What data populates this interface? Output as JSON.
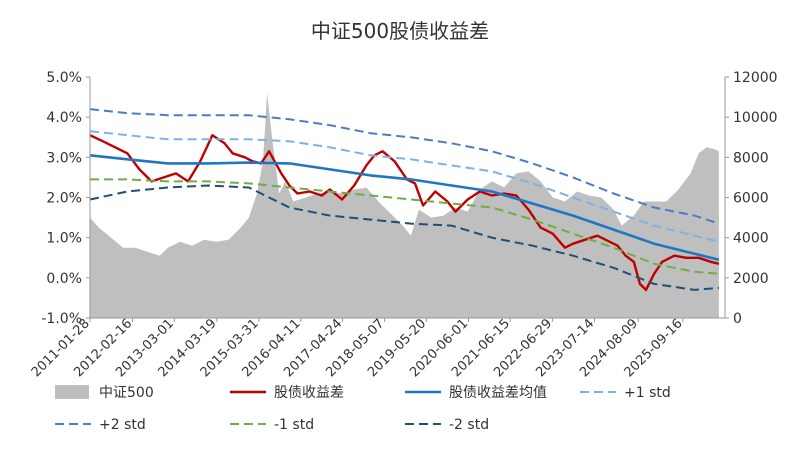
{
  "chart_data": {
    "type": "line",
    "title": "中证500股债收益差",
    "left_axis": {
      "min": -0.01,
      "max": 0.05,
      "step": 0.01,
      "tick_labels": [
        "-1.0%",
        "0.0%",
        "1.0%",
        "2.0%",
        "3.0%",
        "4.0%",
        "5.0%"
      ]
    },
    "right_axis": {
      "min": 0,
      "max": 12000,
      "step": 2000,
      "tick_labels": [
        "0",
        "2000",
        "4000",
        "6000",
        "8000",
        "10000",
        "12000"
      ]
    },
    "x_axis": {
      "range": [
        "2011-01-28",
        "2026-09-30"
      ],
      "tick_labels": [
        "2011-01-28",
        "2012-02-16",
        "2013-03-01",
        "2014-03-19",
        "2015-03-31",
        "2016-04-11",
        "2017-04-24",
        "2018-05-07",
        "2019-05-20",
        "2020-06-01",
        "2021-06-15",
        "2022-06-29",
        "2023-07-14",
        "2024-08-09",
        "2025-09-16"
      ],
      "tick_positions": [
        2011.08,
        2012.13,
        2013.16,
        2014.21,
        2015.25,
        2016.28,
        2017.31,
        2018.35,
        2019.38,
        2020.42,
        2021.45,
        2022.49,
        2023.53,
        2024.61,
        2025.71
      ]
    },
    "grid": false,
    "legend_position": "bottom",
    "series": [
      {
        "name": "中证500",
        "kind": "area",
        "axis": "right",
        "color": "#bfbfbf",
        "x": [
          2011.08,
          2011.3,
          2011.6,
          2011.9,
          2012.2,
          2012.5,
          2012.8,
          2013.0,
          2013.3,
          2013.6,
          2013.9,
          2014.2,
          2014.5,
          2014.8,
          2015.0,
          2015.2,
          2015.35,
          2015.45,
          2015.6,
          2015.75,
          2015.9,
          2016.1,
          2016.4,
          2016.7,
          2017.0,
          2017.3,
          2017.6,
          2017.9,
          2018.2,
          2018.5,
          2018.8,
          2019.0,
          2019.2,
          2019.5,
          2019.8,
          2020.1,
          2020.4,
          2020.7,
          2021.0,
          2021.3,
          2021.6,
          2021.9,
          2022.2,
          2022.5,
          2022.8,
          2023.1,
          2023.4,
          2023.7,
          2024.0,
          2024.2,
          2024.5,
          2024.75,
          2025.0,
          2025.3,
          2025.6,
          2025.9,
          2026.1,
          2026.3,
          2026.5,
          2026.6
        ],
        "y": [
          5000,
          4500,
          4000,
          3500,
          3500,
          3300,
          3100,
          3500,
          3800,
          3600,
          3900,
          3800,
          3900,
          4500,
          5000,
          6200,
          7800,
          11200,
          8500,
          6200,
          6800,
          5800,
          6000,
          6200,
          6300,
          6200,
          6400,
          6500,
          5800,
          5200,
          4600,
          4100,
          5400,
          5000,
          5100,
          5500,
          5300,
          6400,
          6800,
          6500,
          7200,
          7300,
          6800,
          6000,
          5800,
          6300,
          6100,
          6000,
          5400,
          4600,
          5100,
          5800,
          5800,
          5800,
          6400,
          7200,
          8200,
          8500,
          8400,
          8300
        ]
      },
      {
        "name": "股债收益差",
        "kind": "line",
        "axis": "left",
        "color": "#c00000",
        "x": [
          2011.08,
          2011.4,
          2011.7,
          2012.0,
          2012.3,
          2012.6,
          2012.9,
          2013.2,
          2013.5,
          2013.8,
          2014.1,
          2014.4,
          2014.6,
          2014.9,
          2015.1,
          2015.3,
          2015.5,
          2015.8,
          2016.0,
          2016.2,
          2016.5,
          2016.8,
          2017.0,
          2017.3,
          2017.6,
          2017.9,
          2018.1,
          2018.3,
          2018.6,
          2018.9,
          2019.1,
          2019.3,
          2019.6,
          2019.9,
          2020.1,
          2020.4,
          2020.7,
          2021.0,
          2021.3,
          2021.6,
          2021.9,
          2022.2,
          2022.5,
          2022.8,
          2023.0,
          2023.3,
          2023.6,
          2023.9,
          2024.1,
          2024.3,
          2024.5,
          2024.65,
          2024.8,
          2025.0,
          2025.2,
          2025.5,
          2025.8,
          2026.1,
          2026.4,
          2026.6
        ],
        "y": [
          0.0355,
          0.034,
          0.0325,
          0.031,
          0.027,
          0.024,
          0.025,
          0.026,
          0.024,
          0.029,
          0.0355,
          0.0335,
          0.031,
          0.03,
          0.029,
          0.0285,
          0.0315,
          0.026,
          0.023,
          0.021,
          0.0215,
          0.0205,
          0.022,
          0.0195,
          0.023,
          0.028,
          0.0305,
          0.0315,
          0.029,
          0.0245,
          0.0235,
          0.018,
          0.0215,
          0.019,
          0.0165,
          0.0195,
          0.0215,
          0.0205,
          0.021,
          0.0205,
          0.017,
          0.0125,
          0.011,
          0.0075,
          0.0085,
          0.0095,
          0.0105,
          0.009,
          0.008,
          0.0055,
          0.004,
          -0.0015,
          -0.003,
          0.001,
          0.004,
          0.0055,
          0.005,
          0.005,
          0.004,
          0.0035
        ]
      },
      {
        "name": "股债收益差均值",
        "kind": "line",
        "axis": "left",
        "color": "#1f77c4",
        "x": [
          2011.08,
          2012.0,
          2013.0,
          2014.0,
          2015.0,
          2016.0,
          2017.0,
          2018.0,
          2019.0,
          2020.0,
          2021.0,
          2022.0,
          2023.0,
          2024.0,
          2025.0,
          2026.0,
          2026.6
        ],
        "y": [
          0.0305,
          0.0295,
          0.0285,
          0.0285,
          0.0287,
          0.0285,
          0.027,
          0.0255,
          0.0245,
          0.023,
          0.0215,
          0.0185,
          0.0155,
          0.012,
          0.0085,
          0.006,
          0.0045
        ]
      },
      {
        "name": "+1 std",
        "kind": "line",
        "axis": "left",
        "color": "#7fb1e6",
        "dash": "9,5",
        "x": [
          2011.08,
          2012.0,
          2013.0,
          2014.0,
          2015.0,
          2016.0,
          2017.0,
          2018.0,
          2019.0,
          2020.0,
          2021.0,
          2022.0,
          2023.0,
          2024.0,
          2025.0,
          2026.0,
          2026.6
        ],
        "y": [
          0.0365,
          0.0355,
          0.0345,
          0.0345,
          0.0345,
          0.034,
          0.0325,
          0.0305,
          0.0295,
          0.028,
          0.0265,
          0.0235,
          0.02,
          0.0165,
          0.013,
          0.0105,
          0.009
        ]
      },
      {
        "name": "+2 std",
        "kind": "line",
        "axis": "left",
        "color": "#4a7dc4",
        "dash": "9,5",
        "x": [
          2011.08,
          2012.0,
          2013.0,
          2014.0,
          2015.0,
          2016.0,
          2017.0,
          2018.0,
          2019.0,
          2020.0,
          2021.0,
          2022.0,
          2023.0,
          2024.0,
          2025.0,
          2026.0,
          2026.6
        ],
        "y": [
          0.042,
          0.041,
          0.0405,
          0.0405,
          0.0405,
          0.0395,
          0.038,
          0.036,
          0.035,
          0.0335,
          0.0315,
          0.0285,
          0.025,
          0.021,
          0.0175,
          0.0155,
          0.0135
        ]
      },
      {
        "name": "-1 std",
        "kind": "line",
        "axis": "left",
        "color": "#70ad47",
        "dash": "9,5",
        "x": [
          2011.08,
          2012.0,
          2013.0,
          2014.0,
          2015.0,
          2016.0,
          2017.0,
          2018.0,
          2019.0,
          2020.0,
          2021.0,
          2022.0,
          2023.0,
          2024.0,
          2025.0,
          2026.0,
          2026.6
        ],
        "y": [
          0.0245,
          0.0245,
          0.024,
          0.024,
          0.0235,
          0.0225,
          0.0215,
          0.0205,
          0.0195,
          0.0185,
          0.0175,
          0.0145,
          0.011,
          0.0075,
          0.0035,
          0.0015,
          0.001
        ]
      },
      {
        "name": "-2 std",
        "kind": "line",
        "axis": "left",
        "color": "#1f4e79",
        "dash": "9,5",
        "x": [
          2011.08,
          2012.0,
          2013.0,
          2014.0,
          2015.0,
          2016.0,
          2017.0,
          2018.0,
          2019.0,
          2020.0,
          2021.0,
          2022.0,
          2023.0,
          2024.0,
          2025.0,
          2026.0,
          2026.6
        ],
        "y": [
          0.0195,
          0.0215,
          0.0225,
          0.023,
          0.0225,
          0.0175,
          0.0155,
          0.0145,
          0.0135,
          0.013,
          0.01,
          0.008,
          0.0055,
          0.0025,
          -0.0015,
          -0.003,
          -0.0025
        ]
      }
    ]
  }
}
